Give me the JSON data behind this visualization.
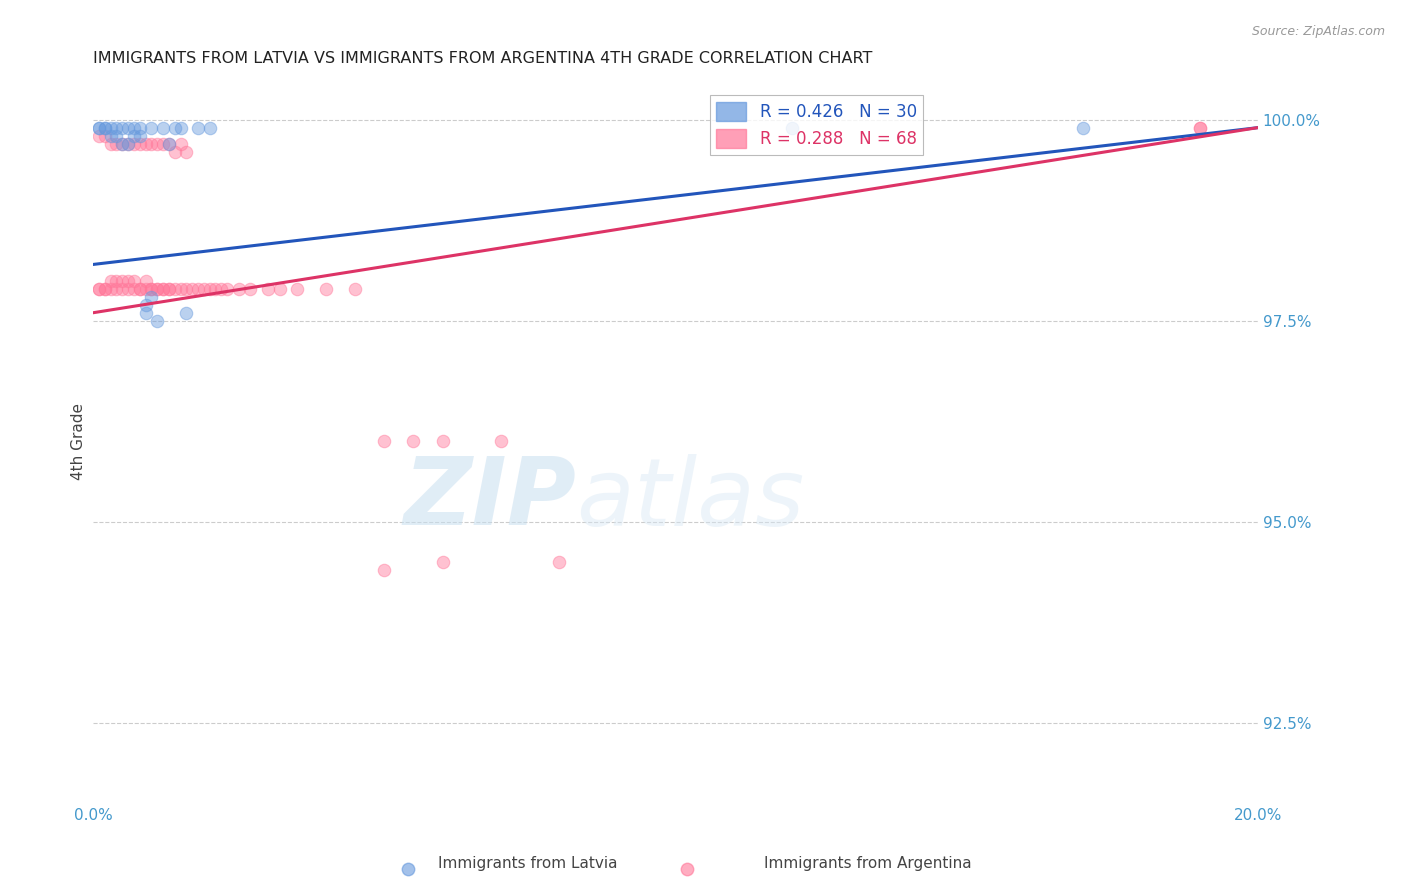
{
  "title": "IMMIGRANTS FROM LATVIA VS IMMIGRANTS FROM ARGENTINA 4TH GRADE CORRELATION CHART",
  "source": "Source: ZipAtlas.com",
  "ylabel": "4th Grade",
  "xlim": [
    0.0,
    0.2
  ],
  "ylim": [
    0.915,
    1.005
  ],
  "yticks": [
    0.925,
    0.95,
    0.975,
    1.0
  ],
  "ytick_labels": [
    "92.5%",
    "95.0%",
    "97.5%",
    "100.0%"
  ],
  "xticks": [
    0.0,
    0.05,
    0.1,
    0.15,
    0.2
  ],
  "xtick_labels": [
    "0.0%",
    "",
    "",
    "",
    "20.0%"
  ],
  "series_latvia": {
    "color": "#6699dd",
    "R": 0.426,
    "N": 30,
    "x": [
      0.001,
      0.001,
      0.002,
      0.002,
      0.003,
      0.003,
      0.004,
      0.004,
      0.005,
      0.005,
      0.006,
      0.006,
      0.007,
      0.007,
      0.008,
      0.008,
      0.009,
      0.009,
      0.01,
      0.01,
      0.011,
      0.012,
      0.013,
      0.014,
      0.015,
      0.016,
      0.018,
      0.02,
      0.12,
      0.17
    ],
    "y": [
      0.999,
      0.999,
      0.999,
      0.999,
      0.999,
      0.998,
      0.998,
      0.999,
      0.997,
      0.999,
      0.999,
      0.997,
      0.999,
      0.998,
      0.998,
      0.999,
      0.977,
      0.976,
      0.978,
      0.999,
      0.975,
      0.999,
      0.997,
      0.999,
      0.999,
      0.976,
      0.999,
      0.999,
      0.999,
      0.999
    ]
  },
  "series_argentina": {
    "color": "#ff7799",
    "R": 0.288,
    "N": 68,
    "x": [
      0.001,
      0.001,
      0.002,
      0.002,
      0.003,
      0.003,
      0.004,
      0.004,
      0.005,
      0.005,
      0.006,
      0.006,
      0.007,
      0.007,
      0.008,
      0.008,
      0.009,
      0.009,
      0.01,
      0.01,
      0.011,
      0.011,
      0.012,
      0.012,
      0.013,
      0.013,
      0.014,
      0.014,
      0.015,
      0.015,
      0.016,
      0.016,
      0.017,
      0.018,
      0.019,
      0.02,
      0.021,
      0.022,
      0.023,
      0.025,
      0.027,
      0.03,
      0.032,
      0.035,
      0.04,
      0.045,
      0.05,
      0.055,
      0.06,
      0.07,
      0.001,
      0.002,
      0.003,
      0.004,
      0.005,
      0.006,
      0.007,
      0.008,
      0.009,
      0.01,
      0.011,
      0.012,
      0.013,
      0.05,
      0.06,
      0.08,
      0.19,
      0.19
    ],
    "y": [
      0.998,
      0.979,
      0.998,
      0.979,
      0.997,
      0.98,
      0.997,
      0.98,
      0.997,
      0.98,
      0.997,
      0.98,
      0.997,
      0.98,
      0.997,
      0.979,
      0.997,
      0.98,
      0.997,
      0.979,
      0.997,
      0.979,
      0.997,
      0.979,
      0.997,
      0.979,
      0.996,
      0.979,
      0.997,
      0.979,
      0.996,
      0.979,
      0.979,
      0.979,
      0.979,
      0.979,
      0.979,
      0.979,
      0.979,
      0.979,
      0.979,
      0.979,
      0.979,
      0.979,
      0.979,
      0.979,
      0.96,
      0.96,
      0.96,
      0.96,
      0.979,
      0.979,
      0.979,
      0.979,
      0.979,
      0.979,
      0.979,
      0.979,
      0.979,
      0.979,
      0.979,
      0.979,
      0.979,
      0.944,
      0.945,
      0.945,
      0.999,
      0.999
    ]
  },
  "line_latvia": {
    "x0": 0.0,
    "y0": 0.982,
    "x1": 0.2,
    "y1": 0.999
  },
  "line_argentina": {
    "x0": 0.0,
    "y0": 0.976,
    "x1": 0.2,
    "y1": 0.999
  },
  "background_color": "#ffffff",
  "grid_color": "#cccccc",
  "title_color": "#222222",
  "axis_color": "#4499cc",
  "watermark_zip": "ZIP",
  "watermark_atlas": "atlas",
  "marker_size": 9
}
